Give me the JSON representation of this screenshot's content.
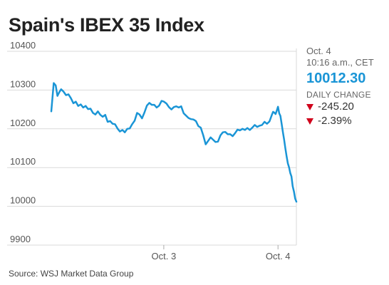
{
  "title": "Spain's IBEX 35 Index",
  "side_panel": {
    "date": "Oct. 4",
    "time": "10:16 a.m., CET",
    "value": "10012.30",
    "daily_change_label": "DAILY CHANGE",
    "change_points": "-245.20",
    "change_percent": "-2.39%",
    "down_arrow_icon": "down-triangle-icon"
  },
  "source": "Source: WSJ Market Data Group",
  "colors": {
    "line": "#1a95d6",
    "value": "#1a95d6",
    "down": "#d0021b",
    "grid": "#d9d9d9"
  },
  "chart_data": {
    "type": "line",
    "title": "Spain's IBEX 35 Index",
    "xlabel": "",
    "ylabel": "",
    "ylim": [
      9900,
      10400
    ],
    "yticks": [
      10400,
      10300,
      10200,
      10100,
      10000,
      9900
    ],
    "ytick_labels": [
      "10400",
      "10300",
      "10200",
      "10100",
      "10000",
      "9900"
    ],
    "xlim": [
      0,
      1
    ],
    "xticks": [
      {
        "x": 0.459,
        "label": "Oct. 3"
      },
      {
        "x": 0.925,
        "label": "Oct. 4"
      }
    ],
    "grid": true,
    "series": [
      {
        "x": [
          0.0,
          0.01,
          0.018,
          0.025,
          0.033,
          0.04,
          0.05,
          0.06,
          0.07,
          0.08,
          0.09,
          0.1,
          0.11,
          0.12,
          0.13,
          0.14,
          0.15,
          0.16,
          0.17,
          0.18,
          0.19,
          0.2,
          0.21,
          0.22,
          0.23,
          0.24,
          0.25,
          0.26,
          0.27,
          0.28,
          0.29,
          0.3,
          0.31,
          0.32,
          0.33,
          0.34,
          0.35,
          0.36,
          0.37,
          0.38,
          0.39,
          0.4,
          0.41,
          0.42,
          0.43,
          0.44,
          0.45,
          0.46,
          0.47,
          0.48,
          0.49,
          0.5,
          0.51,
          0.52,
          0.53,
          0.54,
          0.55,
          0.56,
          0.57,
          0.58,
          0.59,
          0.6,
          0.61,
          0.62,
          0.63,
          0.64,
          0.65,
          0.66,
          0.67,
          0.68,
          0.69,
          0.7,
          0.71,
          0.72,
          0.73,
          0.74,
          0.75,
          0.76,
          0.77,
          0.78,
          0.79,
          0.8,
          0.81,
          0.82,
          0.83,
          0.84,
          0.85,
          0.86,
          0.87,
          0.88,
          0.89,
          0.9,
          0.905,
          0.91,
          0.915,
          0.92,
          0.925,
          0.93,
          0.935,
          0.94,
          0.945,
          0.95,
          0.955,
          0.96,
          0.965,
          0.97,
          0.975,
          0.98,
          0.985,
          0.99,
          0.995,
          1.0
        ],
        "values": [
          10245,
          10318,
          10312,
          10285,
          10295,
          10302,
          10296,
          10287,
          10289,
          10279,
          10266,
          10270,
          10259,
          10263,
          10255,
          10259,
          10251,
          10252,
          10241,
          10237,
          10245,
          10236,
          10231,
          10236,
          10218,
          10220,
          10213,
          10212,
          10201,
          10193,
          10197,
          10191,
          10200,
          10201,
          10212,
          10221,
          10241,
          10237,
          10227,
          10242,
          10260,
          10267,
          10262,
          10262,
          10255,
          10260,
          10272,
          10270,
          10265,
          10256,
          10250,
          10256,
          10258,
          10255,
          10258,
          10240,
          10234,
          10228,
          10225,
          10224,
          10220,
          10207,
          10203,
          10183,
          10160,
          10169,
          10178,
          10172,
          10166,
          10167,
          10183,
          10191,
          10192,
          10186,
          10186,
          10181,
          10189,
          10198,
          10196,
          10200,
          10197,
          10202,
          10197,
          10203,
          10210,
          10205,
          10208,
          10210,
          10218,
          10213,
          10219,
          10236,
          10244,
          10242,
          10238,
          10247,
          10257,
          10240,
          10233,
          10212,
          10191,
          10172,
          10150,
          10130,
          10111,
          10101,
          10086,
          10077,
          10052,
          10038,
          10020,
          10012
        ]
      }
    ]
  }
}
